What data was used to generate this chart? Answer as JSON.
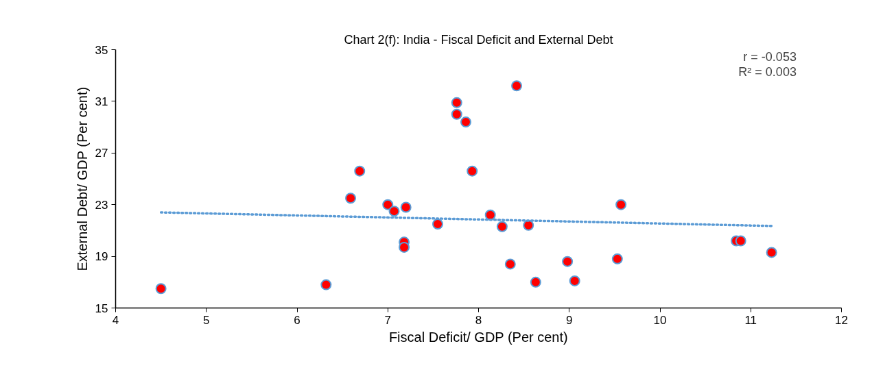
{
  "chart_data": {
    "type": "scatter",
    "title": "Chart 2(f): India - Fiscal Deficit and External Debt",
    "xlabel": "Fiscal Deficit/ GDP (Per cent)",
    "ylabel": "External Debt/ GDP (Per cent)",
    "xlim": [
      4,
      12
    ],
    "xticks": [
      4,
      5,
      6,
      7,
      8,
      9,
      10,
      11,
      12
    ],
    "ylim": [
      15,
      35
    ],
    "yticks": [
      15,
      19,
      23,
      27,
      31,
      35
    ],
    "grid": false,
    "legend": false,
    "annotations": [
      "r = -0.053",
      "R² = 0.003"
    ],
    "series": [
      {
        "type": "scatter",
        "marker": "circle",
        "color": "#ff0000",
        "x": [
          4.5,
          6.32,
          6.59,
          6.69,
          7.0,
          7.07,
          7.2,
          7.18,
          7.18,
          7.55,
          7.76,
          7.76,
          7.86,
          7.93,
          8.13,
          8.42,
          8.26,
          8.55,
          8.35,
          8.63,
          8.98,
          9.06,
          9.53,
          9.57,
          10.84,
          10.89,
          11.23
        ],
        "values": [
          16.5,
          16.8,
          23.5,
          25.6,
          23.0,
          22.5,
          22.8,
          20.1,
          19.7,
          21.5,
          30.9,
          30.0,
          29.4,
          25.6,
          22.2,
          32.2,
          21.3,
          21.4,
          18.4,
          17.0,
          18.6,
          17.1,
          18.8,
          23.0,
          20.2,
          20.2,
          19.3
        ]
      },
      {
        "type": "line",
        "line_style": "dotted",
        "color": "#5b9bd5",
        "x": [
          4.5,
          11.23
        ],
        "values": [
          22.4,
          21.35
        ]
      }
    ]
  }
}
